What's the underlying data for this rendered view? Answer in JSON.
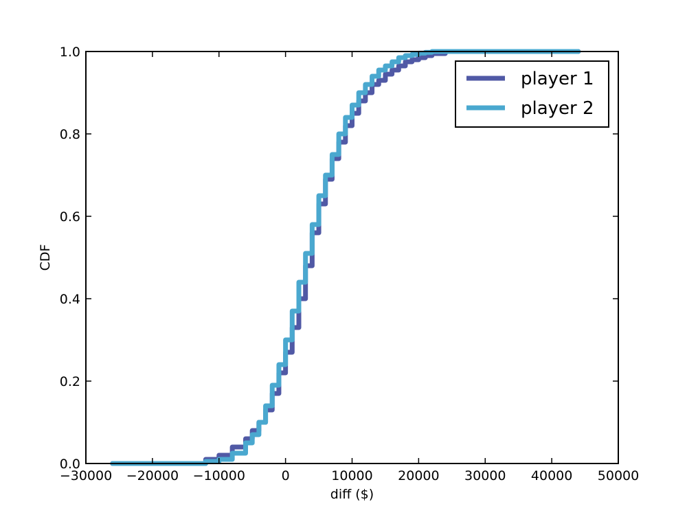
{
  "chart_data": {
    "type": "line",
    "title": "",
    "xlabel": "diff ($)",
    "ylabel": "CDF",
    "xlim": [
      -30000,
      50000
    ],
    "ylim": [
      0.0,
      1.0
    ],
    "xticks": [
      -30000,
      -20000,
      -10000,
      0,
      10000,
      20000,
      30000,
      40000,
      50000
    ],
    "xtick_labels": [
      "−30000",
      "−20000",
      "−10000",
      "0",
      "10000",
      "20000",
      "30000",
      "40000",
      "50000"
    ],
    "yticks": [
      0.0,
      0.2,
      0.4,
      0.6,
      0.8,
      1.0
    ],
    "ytick_labels": [
      "0.0",
      "0.2",
      "0.4",
      "0.6",
      "0.8",
      "1.0"
    ],
    "grid": false,
    "legend_position": "top-right",
    "series": [
      {
        "name": "player 1",
        "color": "#5059a5",
        "x": [
          -26000,
          -14000,
          -12000,
          -10000,
          -8000,
          -6000,
          -5000,
          -4000,
          -3000,
          -2000,
          -1000,
          0,
          1000,
          2000,
          3000,
          4000,
          5000,
          6000,
          7000,
          8000,
          9000,
          10000,
          11000,
          12000,
          13000,
          14000,
          15000,
          16000,
          17000,
          18000,
          19000,
          20000,
          21000,
          22000,
          24000,
          26000,
          44000
        ],
        "y": [
          0.0,
          0.0,
          0.01,
          0.02,
          0.04,
          0.06,
          0.08,
          0.1,
          0.13,
          0.17,
          0.22,
          0.27,
          0.33,
          0.4,
          0.48,
          0.56,
          0.63,
          0.69,
          0.74,
          0.78,
          0.82,
          0.85,
          0.88,
          0.9,
          0.92,
          0.93,
          0.945,
          0.955,
          0.965,
          0.975,
          0.98,
          0.985,
          0.99,
          0.995,
          1.0,
          1.0,
          1.0
        ]
      },
      {
        "name": "player 2",
        "color": "#4aa8cf",
        "x": [
          -26000,
          -14000,
          -12000,
          -10000,
          -8000,
          -6000,
          -5000,
          -4000,
          -3000,
          -2000,
          -1000,
          0,
          1000,
          2000,
          3000,
          4000,
          5000,
          6000,
          7000,
          8000,
          9000,
          10000,
          11000,
          12000,
          13000,
          14000,
          15000,
          16000,
          17000,
          18000,
          19000,
          20000,
          21000,
          22000,
          24000,
          26000,
          44000
        ],
        "y": [
          0.0,
          0.0,
          0.005,
          0.01,
          0.025,
          0.05,
          0.07,
          0.1,
          0.14,
          0.19,
          0.24,
          0.3,
          0.37,
          0.44,
          0.51,
          0.58,
          0.65,
          0.7,
          0.75,
          0.8,
          0.84,
          0.87,
          0.9,
          0.92,
          0.94,
          0.955,
          0.965,
          0.975,
          0.985,
          0.99,
          0.993,
          0.996,
          0.998,
          1.0,
          1.0,
          1.0,
          1.0
        ]
      }
    ]
  }
}
